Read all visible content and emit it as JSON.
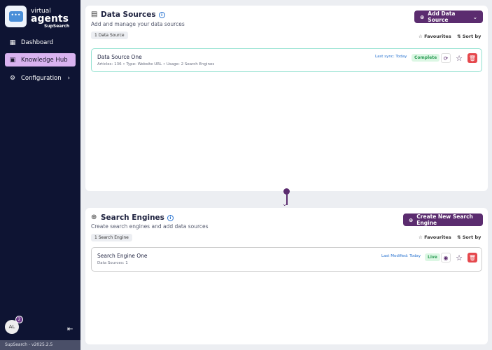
{
  "sidebar": {
    "brand": {
      "line1": "virtual",
      "line2": "agents",
      "line3": "SupSearch"
    },
    "items": [
      {
        "label": "Dashboard",
        "icon": "dashboard-icon"
      },
      {
        "label": "Knowledge Hub",
        "icon": "book-icon",
        "active": true
      },
      {
        "label": "Configuration",
        "icon": "gear-icon"
      }
    ],
    "avatar": "AL",
    "notifications": "2",
    "version": "SupSearch - v2025.2.5"
  },
  "data_sources": {
    "title": "Data Sources",
    "subtitle": "Add and manage your data sources",
    "count": "1 Data Source",
    "add_label": "Add Data Source",
    "favourites": "Favourites",
    "sort": "Sort by",
    "items": [
      {
        "name": "Data Source One",
        "meta": "Articles: 136 • Type: Website URL • Usage: 2 Search Engines",
        "date": "Last sync: Today",
        "status": "Complete"
      }
    ]
  },
  "search_engines": {
    "title": "Search Engines",
    "subtitle": "Create search engines and add data sources",
    "count": "1 Search Engine",
    "create_label": "Create New Search Engine",
    "favourites": "Favourites",
    "sort": "Sort by",
    "items": [
      {
        "name": "Search Engine One",
        "meta": "Data Sources: 1",
        "date": "Last Modified: Today",
        "status": "Live"
      }
    ]
  },
  "colors": {
    "primary": "#5b2c6f",
    "sidebar": "#0e1433",
    "active": "#d9b3f0",
    "success": "#2e9d57",
    "danger": "#e5484d",
    "link": "#2a74d0"
  }
}
